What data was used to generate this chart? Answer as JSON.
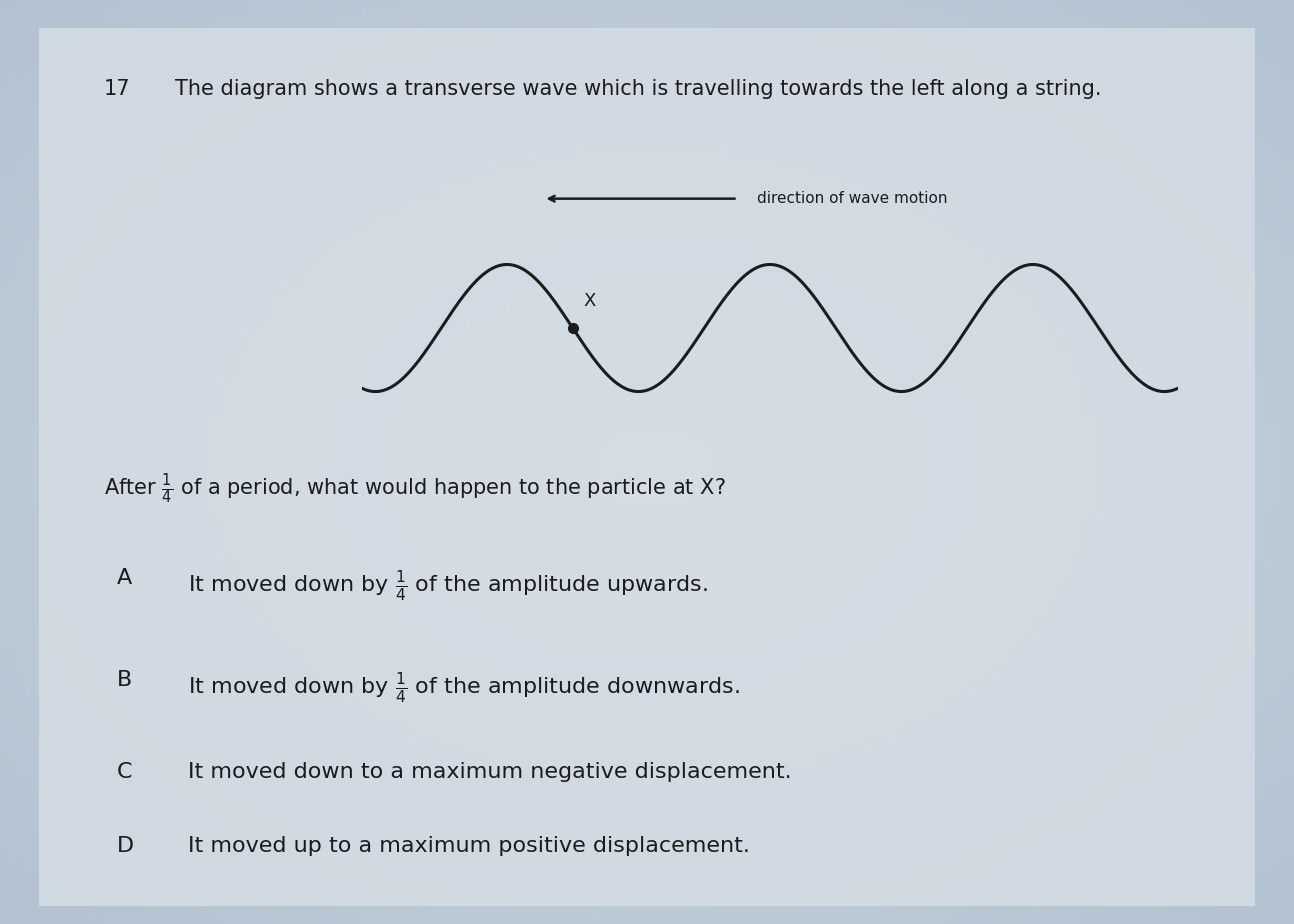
{
  "bg_color_center": "#c8d4dc",
  "bg_color_edge": "#7a8a95",
  "paper_color": "#d8e0e8",
  "question_number": "17",
  "question_line1": "The diagram shows a transverse wave which is travelling towards the left along a string.",
  "direction_label": "direction of wave motion",
  "x_marker_label": "X",
  "after_text_pre": "After ",
  "after_text_post": " of a period, what would happen to the particle at X?",
  "options": [
    {
      "letter": "A",
      "pre": "It moved down by ",
      "frac": true,
      "post": " of the amplitude upwards."
    },
    {
      "letter": "B",
      "pre": "It moved down by ",
      "frac": true,
      "post": " of the amplitude downwards."
    },
    {
      "letter": "C",
      "pre": "",
      "frac": false,
      "post": "It moved down to a maximum negative displacement."
    },
    {
      "letter": "D",
      "pre": "",
      "frac": false,
      "post": "It moved up to a maximum positive displacement."
    }
  ],
  "text_color": "#1c1c1c",
  "wave_color": "#1c1c1c",
  "marker_color": "#1c1c1c",
  "font_size_q": 15,
  "font_size_opts": 16,
  "font_size_qnum": 15
}
